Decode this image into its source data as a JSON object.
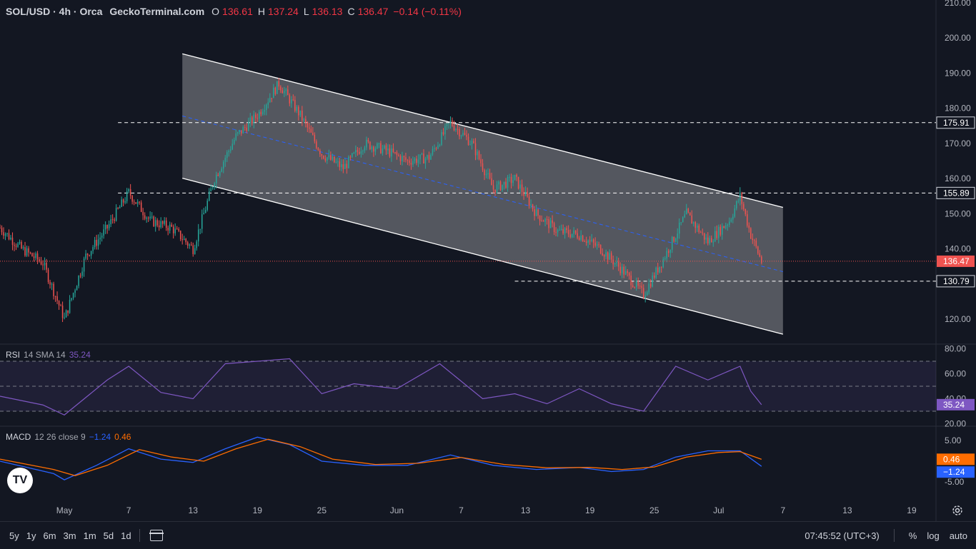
{
  "header": {
    "symbol": "SOL/USD · 4h · Orca",
    "source": "GeckoTerminal.com",
    "ohlc": [
      {
        "k": "O",
        "v": "136.61"
      },
      {
        "k": "H",
        "v": "137.24"
      },
      {
        "k": "L",
        "v": "136.13"
      },
      {
        "k": "C",
        "v": "136.47"
      }
    ],
    "change": "−0.14 (−0.11%)"
  },
  "rsi_legend": {
    "name": "RSI",
    "params": "14 SMA 14",
    "value": "35.24"
  },
  "macd_legend": {
    "name": "MACD",
    "params": "12 26 close 9",
    "macd": "−1.24",
    "signal": "0.46"
  },
  "colors": {
    "background": "#131722",
    "up": "#26a69a",
    "down": "#ef5350",
    "rsi": "#7e57c2",
    "macd": "#2962ff",
    "signal": "#ff6d00",
    "channel": "#ffffff",
    "midline": "#2962ff"
  },
  "bottom_bar": {
    "timeframes": [
      "5y",
      "1y",
      "6m",
      "3m",
      "1m",
      "5d",
      "1d"
    ],
    "clock": "07:45:52 (UTC+3)",
    "toggles": [
      "%",
      "log",
      "auto"
    ]
  },
  "chart_data": {
    "type": "candlestick",
    "title": "SOL/USD · 4h · Orca",
    "price_axis": {
      "ylim": [
        113,
        212
      ],
      "ticks": [
        "120.00",
        "130.00",
        "140.00",
        "150.00",
        "160.00",
        "170.00",
        "180.00",
        "190.00",
        "200.00",
        "210.00"
      ]
    },
    "x_ticks": [
      "May",
      "7",
      "13",
      "19",
      "25",
      "Jun",
      "7",
      "13",
      "19",
      "25",
      "Jul",
      "7",
      "13",
      "19"
    ],
    "xlim": [
      "2024-04-25",
      "2024-07-21"
    ],
    "last_price": "136.47",
    "levels": [
      {
        "label": "175.91",
        "value": 175.91
      },
      {
        "label": "155.89",
        "value": 155.89
      },
      {
        "label": "130.79",
        "value": 130.79
      }
    ],
    "descending_channel": {
      "start": "2024-05-12",
      "end": "2024-07-07",
      "upper": [
        195.5,
        151.8
      ],
      "lower": [
        160.1,
        115.7
      ],
      "mid": [
        177.8,
        133.5
      ]
    },
    "price_path": [
      [
        "2024-04-25",
        146
      ],
      [
        "2024-04-27",
        140
      ],
      [
        "2024-04-29",
        136
      ],
      [
        "2024-05-01",
        120
      ],
      [
        "2024-05-03",
        138
      ],
      [
        "2024-05-05",
        146
      ],
      [
        "2024-05-07",
        156
      ],
      [
        "2024-05-09",
        148
      ],
      [
        "2024-05-11",
        146
      ],
      [
        "2024-05-13",
        140
      ],
      [
        "2024-05-15",
        160
      ],
      [
        "2024-05-17",
        172
      ],
      [
        "2024-05-19",
        178
      ],
      [
        "2024-05-21",
        187
      ],
      [
        "2024-05-23",
        178
      ],
      [
        "2024-05-25",
        167
      ],
      [
        "2024-05-27",
        163
      ],
      [
        "2024-05-29",
        170
      ],
      [
        "2024-05-31",
        168
      ],
      [
        "2024-06-02",
        165
      ],
      [
        "2024-06-04",
        166
      ],
      [
        "2024-06-06",
        176
      ],
      [
        "2024-06-08",
        170
      ],
      [
        "2024-06-10",
        157
      ],
      [
        "2024-06-12",
        160
      ],
      [
        "2024-06-14",
        150
      ],
      [
        "2024-06-16",
        145
      ],
      [
        "2024-06-18",
        144
      ],
      [
        "2024-06-20",
        140
      ],
      [
        "2024-06-22",
        134
      ],
      [
        "2024-06-24",
        127
      ],
      [
        "2024-06-26",
        138
      ],
      [
        "2024-06-28",
        150
      ],
      [
        "2024-06-30",
        142
      ],
      [
        "2024-07-02",
        148
      ],
      [
        "2024-07-03",
        155
      ],
      [
        "2024-07-04",
        144
      ],
      [
        "2024-07-05",
        136.47
      ]
    ],
    "rsi": {
      "ylim": [
        14,
        84
      ],
      "ticks": [
        "20.00",
        "40.00",
        "60.00",
        "80.00"
      ],
      "bands": [
        30,
        50,
        70
      ],
      "last": "35.24",
      "values": [
        [
          "2024-04-25",
          42
        ],
        [
          "2024-04-29",
          35
        ],
        [
          "2024-05-01",
          27
        ],
        [
          "2024-05-05",
          55
        ],
        [
          "2024-05-07",
          66
        ],
        [
          "2024-05-10",
          45
        ],
        [
          "2024-05-13",
          40
        ],
        [
          "2024-05-16",
          68
        ],
        [
          "2024-05-19",
          70
        ],
        [
          "2024-05-22",
          72
        ],
        [
          "2024-05-25",
          44
        ],
        [
          "2024-05-28",
          52
        ],
        [
          "2024-06-01",
          48
        ],
        [
          "2024-06-05",
          68
        ],
        [
          "2024-06-09",
          40
        ],
        [
          "2024-06-12",
          44
        ],
        [
          "2024-06-15",
          36
        ],
        [
          "2024-06-18",
          48
        ],
        [
          "2024-06-21",
          36
        ],
        [
          "2024-06-24",
          30
        ],
        [
          "2024-06-27",
          66
        ],
        [
          "2024-06-30",
          55
        ],
        [
          "2024-07-03",
          66
        ],
        [
          "2024-07-04",
          46
        ],
        [
          "2024-07-05",
          35.24
        ]
      ]
    },
    "macd": {
      "ylim": [
        -6.5,
        6.5
      ],
      "ticks": [
        "-5.00",
        "0.00",
        "5.00"
      ],
      "last_macd": "−1.24",
      "last_signal": "0.46",
      "macd_values": [
        [
          "2024-04-25",
          0
        ],
        [
          "2024-04-30",
          -3
        ],
        [
          "2024-05-01",
          -4.5
        ],
        [
          "2024-05-04",
          -1
        ],
        [
          "2024-05-07",
          3
        ],
        [
          "2024-05-10",
          0.5
        ],
        [
          "2024-05-13",
          -0.3
        ],
        [
          "2024-05-16",
          3
        ],
        [
          "2024-05-19",
          5.8
        ],
        [
          "2024-05-22",
          4
        ],
        [
          "2024-05-25",
          0
        ],
        [
          "2024-05-29",
          -1
        ],
        [
          "2024-06-02",
          -1
        ],
        [
          "2024-06-06",
          1.5
        ],
        [
          "2024-06-10",
          -1
        ],
        [
          "2024-06-14",
          -2
        ],
        [
          "2024-06-18",
          -1.5
        ],
        [
          "2024-06-21",
          -2.5
        ],
        [
          "2024-06-24",
          -2
        ],
        [
          "2024-06-27",
          1
        ],
        [
          "2024-06-30",
          2.5
        ],
        [
          "2024-07-03",
          2.5
        ],
        [
          "2024-07-05",
          -1.24
        ]
      ],
      "signal_values": [
        [
          "2024-04-25",
          0.5
        ],
        [
          "2024-04-30",
          -2
        ],
        [
          "2024-05-02",
          -3.5
        ],
        [
          "2024-05-05",
          -1
        ],
        [
          "2024-05-08",
          2.8
        ],
        [
          "2024-05-11",
          1
        ],
        [
          "2024-05-14",
          0
        ],
        [
          "2024-05-17",
          3
        ],
        [
          "2024-05-20",
          5.3
        ],
        [
          "2024-05-23",
          3.5
        ],
        [
          "2024-05-26",
          0.5
        ],
        [
          "2024-05-30",
          -0.8
        ],
        [
          "2024-06-03",
          -0.5
        ],
        [
          "2024-06-07",
          0.9
        ],
        [
          "2024-06-11",
          -0.8
        ],
        [
          "2024-06-15",
          -1.6
        ],
        [
          "2024-06-19",
          -1.5
        ],
        [
          "2024-06-22",
          -2
        ],
        [
          "2024-06-25",
          -1.4
        ],
        [
          "2024-06-28",
          1
        ],
        [
          "2024-07-01",
          2.1
        ],
        [
          "2024-07-03",
          2.3
        ],
        [
          "2024-07-05",
          0.46
        ]
      ]
    }
  }
}
